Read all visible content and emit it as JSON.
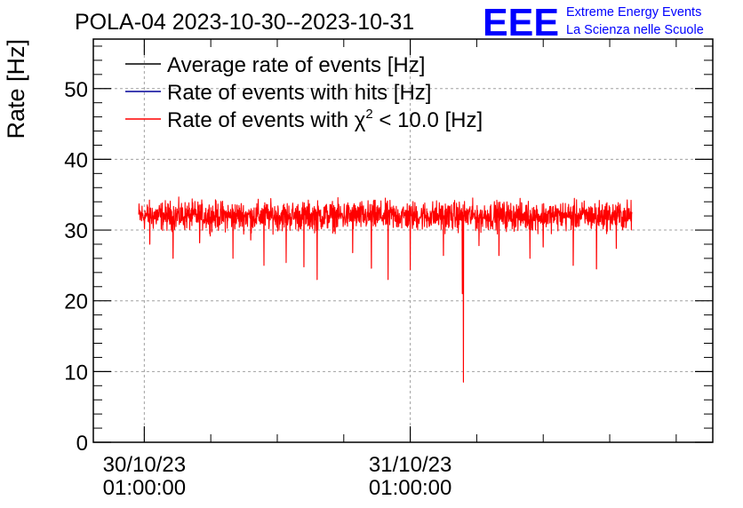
{
  "chart_data": {
    "type": "line",
    "title": "POLA-04 2023-10-30--2023-10-31",
    "ylabel": "Rate [Hz]",
    "xlabel": "",
    "ylim": [
      0,
      57
    ],
    "yticks": [
      0,
      10,
      20,
      30,
      40,
      50
    ],
    "xlim_hours": [
      -3.6,
      52.3
    ],
    "xticks": [
      {
        "hour": 1,
        "date": "30/10/23",
        "time": "01:00:00"
      },
      {
        "hour": 25,
        "date": "31/10/23",
        "time": "01:00:00"
      }
    ],
    "grid": true,
    "legend": [
      {
        "label": "Average rate of events [Hz]",
        "color": "#000000"
      },
      {
        "label": "Rate of events with hits [Hz]",
        "color": "#000099"
      },
      {
        "label_prefix": "Rate of events with ",
        "label_symbol": "χ",
        "label_sup": "2",
        "label_suffix": " < 10.0 [Hz]",
        "color": "#ff0000"
      }
    ],
    "series": [
      {
        "name": "Rate of events with χ2 < 10.0 [Hz]",
        "color": "#ff0000",
        "x_start_hour": 0.5,
        "x_end_hour": 45.0,
        "baseline": 32.0,
        "noise": 1.0,
        "dips": [
          {
            "hour": 1.5,
            "value": 28.0
          },
          {
            "hour": 3.6,
            "value": 26.0
          },
          {
            "hour": 6.0,
            "value": 28.2
          },
          {
            "hour": 9.0,
            "value": 26.0
          },
          {
            "hour": 10.6,
            "value": 28.6
          },
          {
            "hour": 11.8,
            "value": 25.0
          },
          {
            "hour": 13.8,
            "value": 25.4
          },
          {
            "hour": 15.4,
            "value": 24.8
          },
          {
            "hour": 16.6,
            "value": 23.0
          },
          {
            "hour": 19.8,
            "value": 26.8
          },
          {
            "hour": 21.5,
            "value": 24.6
          },
          {
            "hour": 23.0,
            "value": 23.0
          },
          {
            "hour": 25.0,
            "value": 24.4
          },
          {
            "hour": 28.0,
            "value": 26.4
          },
          {
            "hour": 29.7,
            "value": 21.0
          },
          {
            "hour": 29.8,
            "value": 8.5
          },
          {
            "hour": 31.2,
            "value": 27.8
          },
          {
            "hour": 33.0,
            "value": 26.4
          },
          {
            "hour": 35.8,
            "value": 26.0
          },
          {
            "hour": 37.0,
            "value": 27.6
          },
          {
            "hour": 39.7,
            "value": 25.0
          },
          {
            "hour": 41.8,
            "value": 24.5
          },
          {
            "hour": 43.6,
            "value": 27.4
          }
        ]
      }
    ]
  },
  "logo": {
    "mark": "EEE",
    "line1": "Extreme Energy Events",
    "line2": "La Scienza nelle Scuole",
    "color": "#0000ff"
  },
  "colors": {
    "frame": "#000000",
    "grid": "#a0a0a0"
  }
}
